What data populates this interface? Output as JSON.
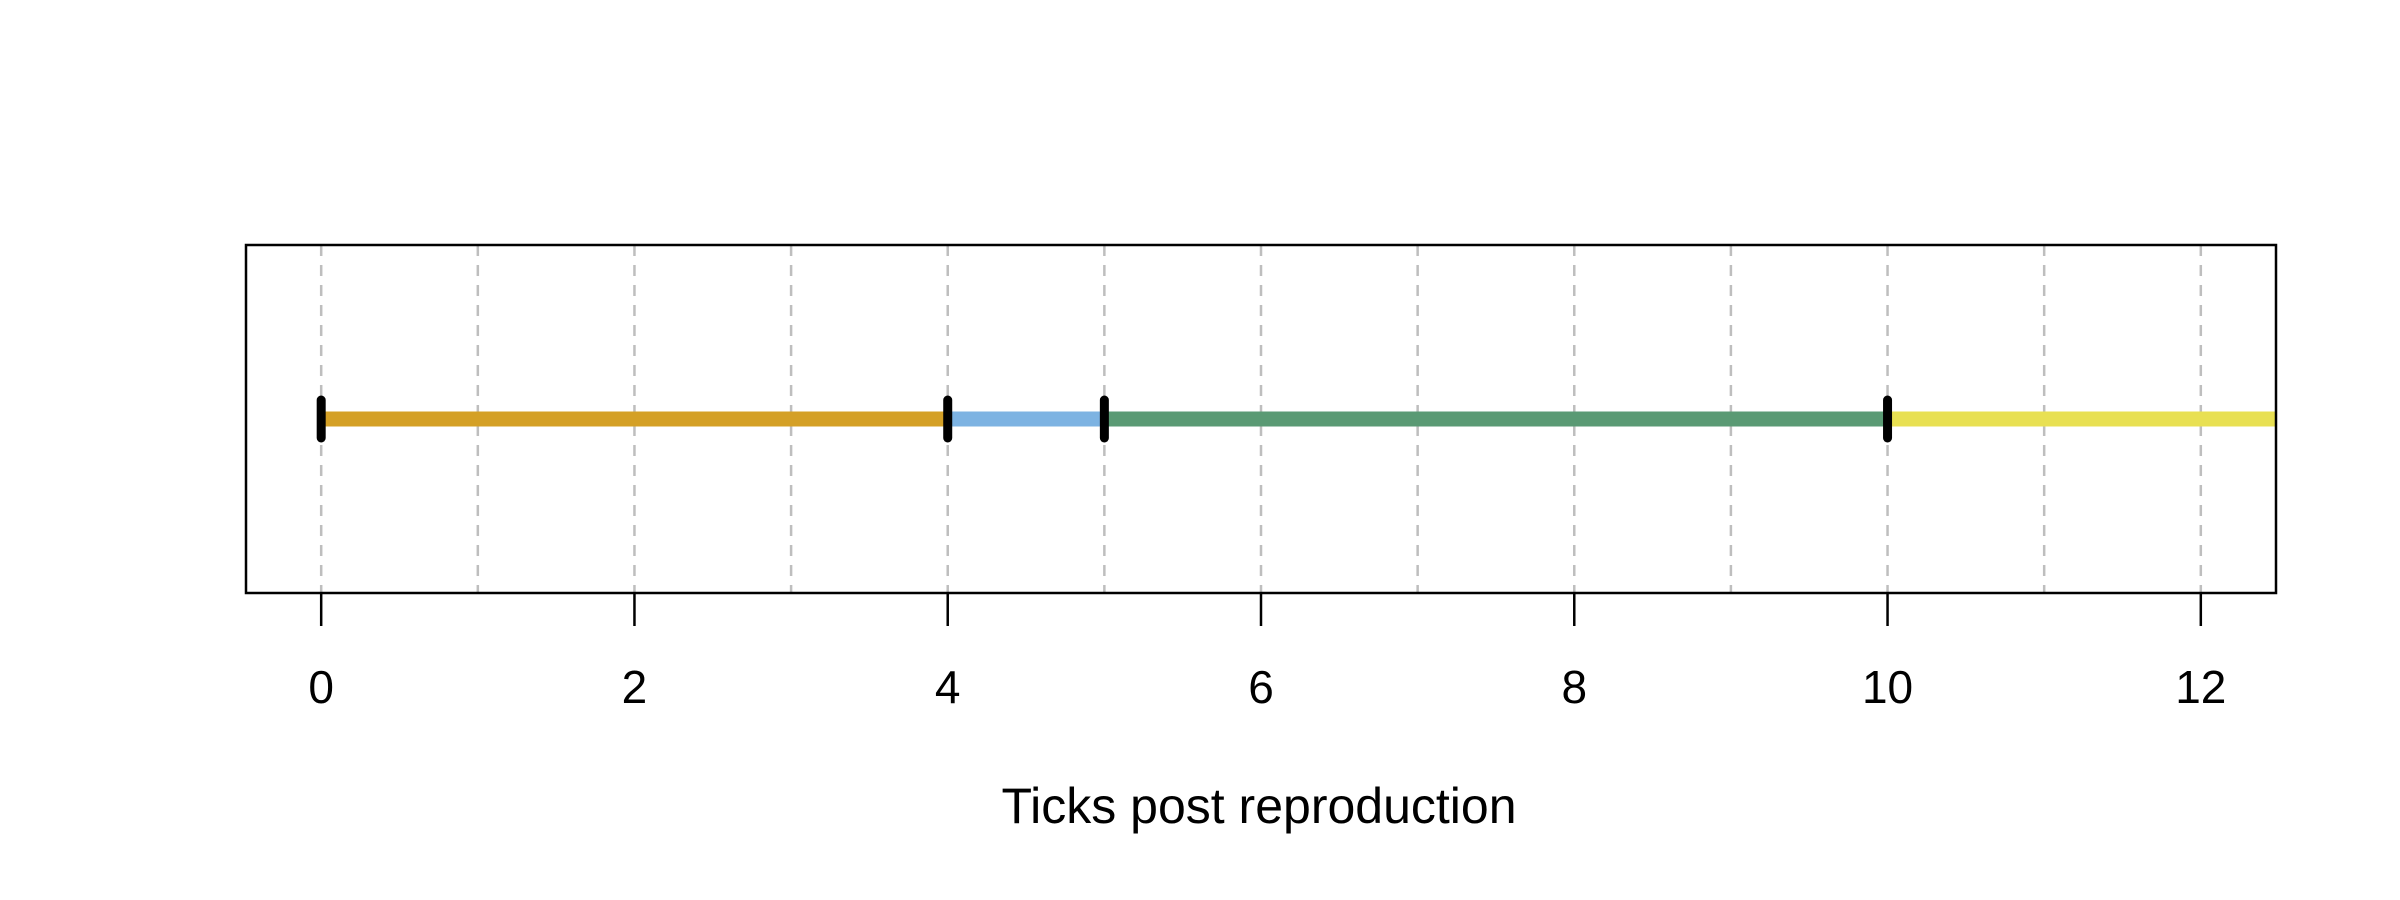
{
  "chart_data": {
    "type": "timeline",
    "title": "",
    "xlabel": "Ticks post reproduction",
    "ylabel": "",
    "xlim": [
      -0.48,
      12.48
    ],
    "x_ticks": [
      0,
      2,
      4,
      6,
      8,
      10,
      12
    ],
    "x_tick_labels": [
      "0",
      "2",
      "4",
      "6",
      "8",
      "10",
      "12"
    ],
    "gridlines_x": [
      0,
      1,
      2,
      3,
      4,
      5,
      6,
      7,
      8,
      9,
      10,
      11,
      12
    ],
    "grid": "vertical dashed",
    "segments": [
      {
        "start": 0,
        "end": 4,
        "color": "#D4A026"
      },
      {
        "start": 4,
        "end": 5,
        "color": "#7DB3E2"
      },
      {
        "start": 5,
        "end": 10,
        "color": "#5A9A74"
      },
      {
        "start": 10,
        "end": 12.48,
        "color": "#E8E052"
      }
    ],
    "markers": [
      0,
      4,
      5,
      10
    ],
    "colors": {
      "grid": "#BEBEBE",
      "frame": "#000000",
      "marker": "#000000"
    }
  }
}
